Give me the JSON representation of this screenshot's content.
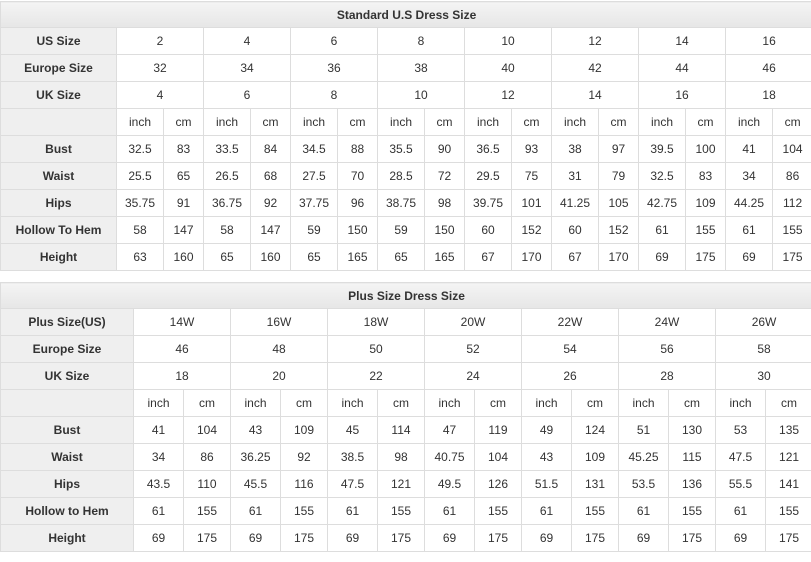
{
  "tables": [
    {
      "title": "Standard U.S Dress Size",
      "size_rows": [
        {
          "label": "US Size",
          "values": [
            2,
            4,
            6,
            8,
            10,
            12,
            14,
            16
          ]
        },
        {
          "label": "Europe Size",
          "values": [
            32,
            34,
            36,
            38,
            40,
            42,
            44,
            46
          ]
        },
        {
          "label": "UK Size",
          "values": [
            4,
            6,
            8,
            10,
            12,
            14,
            16,
            18
          ]
        }
      ],
      "units": [
        "inch",
        "cm"
      ],
      "measure_rows": [
        {
          "label": "Bust",
          "values": [
            32.5,
            83,
            33.5,
            84,
            34.5,
            88,
            35.5,
            90,
            36.5,
            93,
            38,
            97,
            39.5,
            100,
            41,
            104
          ]
        },
        {
          "label": "Waist",
          "values": [
            25.5,
            65,
            26.5,
            68,
            27.5,
            70,
            28.5,
            72,
            29.5,
            75,
            31,
            79,
            32.5,
            83,
            34,
            86
          ]
        },
        {
          "label": "Hips",
          "values": [
            35.75,
            91,
            36.75,
            92,
            37.75,
            96,
            38.75,
            98,
            39.75,
            101,
            41.25,
            105,
            42.75,
            109,
            44.25,
            112
          ]
        },
        {
          "label": "Hollow To Hem",
          "values": [
            58,
            147,
            58,
            147,
            59,
            150,
            59,
            150,
            60,
            152,
            60,
            152,
            61,
            155,
            61,
            155
          ]
        },
        {
          "label": "Height",
          "values": [
            63,
            160,
            65,
            160,
            65,
            165,
            65,
            165,
            67,
            170,
            67,
            170,
            69,
            175,
            69,
            175
          ]
        }
      ]
    },
    {
      "title": "Plus Size Dress Size",
      "size_rows": [
        {
          "label": "Plus Size(US)",
          "values": [
            "14W",
            "16W",
            "18W",
            "20W",
            "22W",
            "24W",
            "26W"
          ]
        },
        {
          "label": "Europe Size",
          "values": [
            46,
            48,
            50,
            52,
            54,
            56,
            58
          ]
        },
        {
          "label": "UK Size",
          "values": [
            18,
            20,
            22,
            24,
            26,
            28,
            30
          ]
        }
      ],
      "units": [
        "inch",
        "cm"
      ],
      "measure_rows": [
        {
          "label": "Bust",
          "values": [
            41,
            104,
            43,
            109,
            45,
            114,
            47,
            119,
            49,
            124,
            51,
            130,
            53,
            135
          ]
        },
        {
          "label": "Waist",
          "values": [
            34,
            86,
            36.25,
            92,
            38.5,
            98,
            40.75,
            104,
            43,
            109,
            45.25,
            115,
            47.5,
            121
          ]
        },
        {
          "label": "Hips",
          "values": [
            43.5,
            110,
            45.5,
            116,
            47.5,
            121,
            49.5,
            126,
            51.5,
            131,
            53.5,
            136,
            55.5,
            141
          ]
        },
        {
          "label": "Hollow to Hem",
          "values": [
            61,
            155,
            61,
            155,
            61,
            155,
            61,
            155,
            61,
            155,
            61,
            155,
            61,
            155
          ]
        },
        {
          "label": "Height",
          "values": [
            69,
            175,
            69,
            175,
            69,
            175,
            69,
            175,
            69,
            175,
            69,
            175,
            69,
            175
          ]
        }
      ]
    }
  ]
}
